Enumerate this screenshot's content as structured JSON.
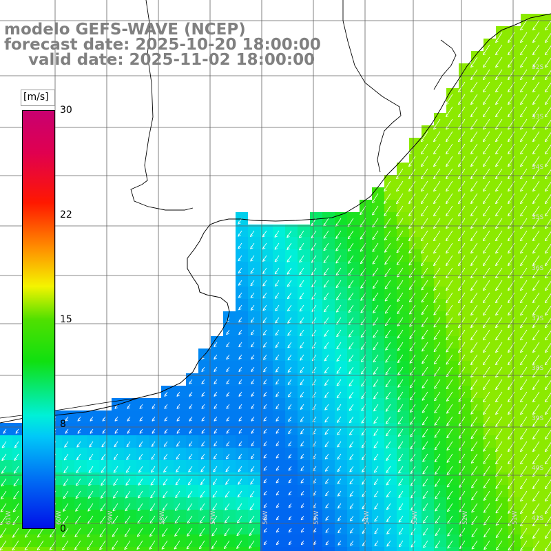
{
  "title": {
    "model": "modelo GEFS-WAVE (NCEP)",
    "forecast": "forecast date: 2025-10-20 18:00:00",
    "valid": "valid date: 2025-11-02 18:00:00"
  },
  "colorbar": {
    "unit": "[m/s]",
    "ticks": [
      "30",
      "22",
      "15",
      "8",
      "0"
    ],
    "tick_values": [
      30,
      22,
      15,
      8,
      0
    ]
  },
  "grid": {
    "lat_labels": [
      "32S",
      "33S",
      "34S",
      "35S",
      "36S",
      "37S",
      "38S",
      "39S",
      "40S",
      "41S"
    ],
    "lon_labels": [
      "61W",
      "60W",
      "59W",
      "58W",
      "57W",
      "56W",
      "55W",
      "54W",
      "53W",
      "52W",
      "51W"
    ]
  },
  "colors": {
    "title_text": "#808080",
    "land": "#ffffff",
    "coastline": "#000000",
    "grid_lines": "#606060",
    "arrows": "#ffffff"
  },
  "field": {
    "variable": "wind speed",
    "units": "m/s",
    "arrow_direction": "toward southwest (from northeast)"
  }
}
